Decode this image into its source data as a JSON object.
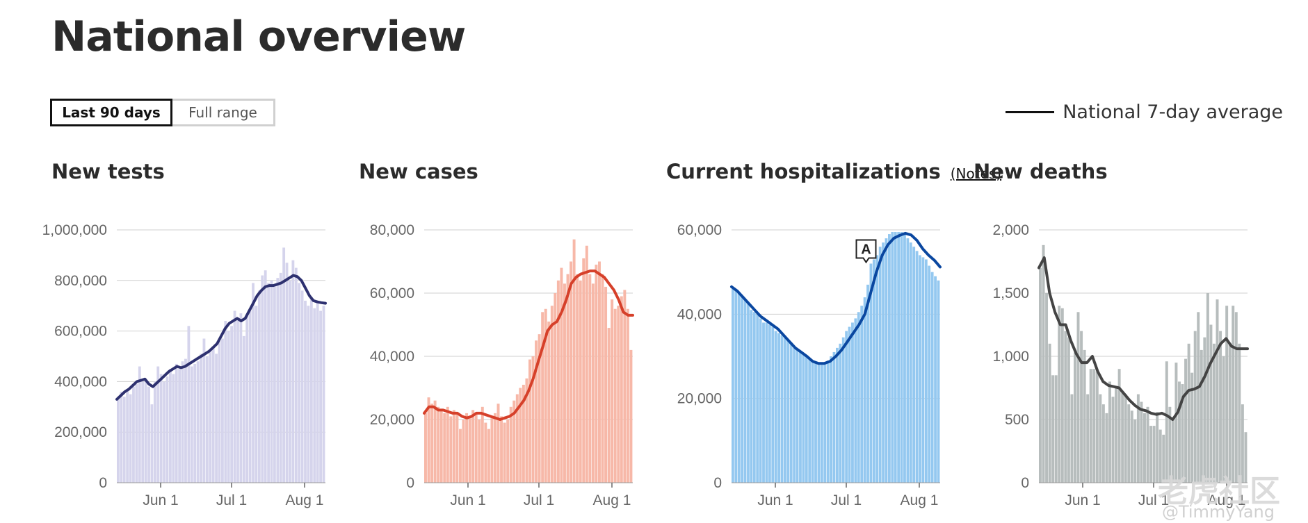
{
  "page": {
    "title": "National overview",
    "range_toggle": {
      "active": "Last 90 days",
      "inactive": "Full range"
    },
    "legend_label": "National 7-day average",
    "notes_label": "(Notes)",
    "annotation_marker": "A",
    "watermark": "老虎社区",
    "watermark_sub": "@TimmyYang"
  },
  "colors": {
    "tests_bar": "#d5d4ec",
    "tests_line": "#2e3170",
    "cases_bar": "#f7b8a8",
    "cases_line": "#d6402a",
    "hosp_bar": "#94c8f0",
    "hosp_line": "#0a47a0",
    "deaths_bar": "#b7bdbd",
    "deaths_line": "#444444",
    "grid": "#cfcfcf"
  },
  "chart_data": [
    {
      "type": "bar",
      "title": "New tests",
      "x_ticks": [
        "Jun 1",
        "Jul 1",
        "Aug 1"
      ],
      "y_ticks": [
        "0",
        "200,000",
        "400,000",
        "600,000",
        "800,000",
        "1,000,000"
      ],
      "ylim": [
        0,
        1000000
      ],
      "grid": true,
      "series": [
        {
          "values": [
            330000,
            360000,
            340000,
            370000,
            350000,
            380000,
            390000,
            460000,
            400000,
            410000,
            380000,
            310000,
            400000,
            460000,
            430000,
            400000,
            420000,
            450000,
            430000,
            470000,
            450000,
            480000,
            490000,
            620000,
            460000,
            470000,
            480000,
            510000,
            570000,
            500000,
            520000,
            540000,
            510000,
            560000,
            570000,
            640000,
            600000,
            620000,
            680000,
            650000,
            670000,
            580000,
            660000,
            680000,
            790000,
            700000,
            760000,
            820000,
            840000,
            790000,
            800000,
            780000,
            810000,
            830000,
            930000,
            870000,
            800000,
            880000,
            850000,
            790000,
            760000,
            720000,
            700000,
            730000,
            690000,
            720000,
            680000,
            700000
          ]
        },
        {
          "values": [
            330000,
            345000,
            360000,
            370000,
            385000,
            400000,
            405000,
            410000,
            390000,
            380000,
            395000,
            410000,
            425000,
            440000,
            450000,
            460000,
            455000,
            460000,
            470000,
            480000,
            490000,
            500000,
            510000,
            520000,
            535000,
            550000,
            580000,
            610000,
            630000,
            640000,
            650000,
            640000,
            650000,
            680000,
            710000,
            740000,
            760000,
            775000,
            780000,
            780000,
            785000,
            790000,
            800000,
            810000,
            820000,
            815000,
            800000,
            770000,
            740000,
            720000,
            715000,
            712000,
            710000
          ]
        }
      ]
    },
    {
      "type": "bar",
      "title": "New cases",
      "x_ticks": [
        "Jun 1",
        "Jul 1",
        "Aug 1"
      ],
      "y_ticks": [
        "0",
        "20,000",
        "40,000",
        "60,000",
        "80,000"
      ],
      "ylim": [
        0,
        80000
      ],
      "grid": true,
      "series": [
        {
          "values": [
            22000,
            27000,
            25000,
            26000,
            24000,
            23000,
            22000,
            24000,
            21000,
            23000,
            22000,
            17000,
            20000,
            22000,
            21000,
            23000,
            22000,
            20000,
            24000,
            19000,
            17000,
            21000,
            22000,
            25000,
            21000,
            19000,
            20000,
            24000,
            26000,
            28000,
            30000,
            31000,
            33000,
            39000,
            40000,
            45000,
            47000,
            54000,
            55000,
            51000,
            56000,
            60000,
            64000,
            68000,
            63000,
            66000,
            70000,
            77000,
            66000,
            64000,
            71000,
            75000,
            66000,
            63000,
            69000,
            70000,
            66000,
            62000,
            49000,
            58000,
            55000,
            56000,
            59000,
            61000,
            55000,
            42000
          ]
        },
        {
          "values": [
            22000,
            24000,
            24000,
            23000,
            23000,
            22500,
            22000,
            22000,
            21000,
            20500,
            21000,
            22000,
            22000,
            21500,
            21000,
            20500,
            20000,
            20500,
            21000,
            22000,
            24000,
            26000,
            29000,
            33000,
            38000,
            43000,
            48000,
            50000,
            51000,
            54000,
            58000,
            63000,
            65000,
            66000,
            66500,
            67000,
            67000,
            66000,
            65000,
            63000,
            61000,
            58000,
            54000,
            53000,
            53000
          ]
        }
      ]
    },
    {
      "type": "bar",
      "title": "Current hospitalizations",
      "x_ticks": [
        "Jun 1",
        "Jul 1",
        "Aug 1"
      ],
      "y_ticks": [
        "0",
        "20,000",
        "40,000",
        "60,000"
      ],
      "ylim": [
        0,
        60000
      ],
      "grid": true,
      "series": [
        {
          "values": [
            46000,
            45500,
            45000,
            44000,
            43500,
            42500,
            41000,
            40500,
            40000,
            39000,
            38000,
            38000,
            37500,
            37000,
            36000,
            35500,
            35000,
            34500,
            34000,
            33000,
            32000,
            31500,
            31000,
            30500,
            30000,
            29500,
            29000,
            28500,
            28000,
            28000,
            28500,
            29000,
            30000,
            31000,
            32000,
            33000,
            34500,
            36000,
            37000,
            38000,
            39000,
            40500,
            42000,
            44000,
            47000,
            52000,
            53000,
            54000,
            56000,
            57000,
            58000,
            59000,
            59500,
            59500,
            59500,
            59500,
            59000,
            58000,
            57000,
            56000,
            55000,
            54000,
            53500,
            53000,
            51500,
            50000,
            49000,
            48000
          ]
        },
        {
          "values": [
            46500,
            45500,
            44000,
            42500,
            41000,
            39500,
            38500,
            37500,
            36500,
            35000,
            33500,
            32000,
            31000,
            30000,
            28800,
            28300,
            28300,
            28800,
            30000,
            31500,
            33500,
            35500,
            37500,
            40000,
            45000,
            50000,
            54000,
            56500,
            58000,
            58700,
            59200,
            58800,
            57500,
            55500,
            54000,
            52800,
            51200
          ]
        }
      ]
    },
    {
      "type": "bar",
      "title": "New deaths",
      "x_ticks": [
        "Jun 1",
        "Jul 1",
        "Aug 1"
      ],
      "y_ticks": [
        "0",
        "500",
        "1,000",
        "1,500",
        "2,000"
      ],
      "ylim": [
        0,
        2000
      ],
      "grid": true,
      "series": [
        {
          "values": [
            1700,
            1880,
            1500,
            1100,
            850,
            850,
            1400,
            1380,
            1200,
            1150,
            700,
            1030,
            1350,
            1200,
            1050,
            700,
            900,
            900,
            880,
            700,
            620,
            550,
            800,
            680,
            750,
            900,
            720,
            700,
            620,
            570,
            500,
            700,
            640,
            550,
            600,
            450,
            450,
            560,
            420,
            380,
            960,
            600,
            500,
            950,
            800,
            780,
            980,
            1100,
            870,
            1200,
            1350,
            1050,
            1150,
            1500,
            1250,
            1100,
            1450,
            1200,
            1000,
            1400,
            1100,
            1400,
            1350,
            1100,
            620,
            400
          ]
        },
        {
          "values": [
            1700,
            1780,
            1500,
            1350,
            1250,
            1250,
            1120,
            1020,
            950,
            950,
            1000,
            880,
            800,
            770,
            760,
            750,
            700,
            650,
            610,
            580,
            570,
            550,
            540,
            550,
            530,
            500,
            560,
            680,
            730,
            740,
            760,
            840,
            940,
            1020,
            1100,
            1140,
            1080,
            1060,
            1060,
            1060
          ]
        }
      ]
    }
  ]
}
